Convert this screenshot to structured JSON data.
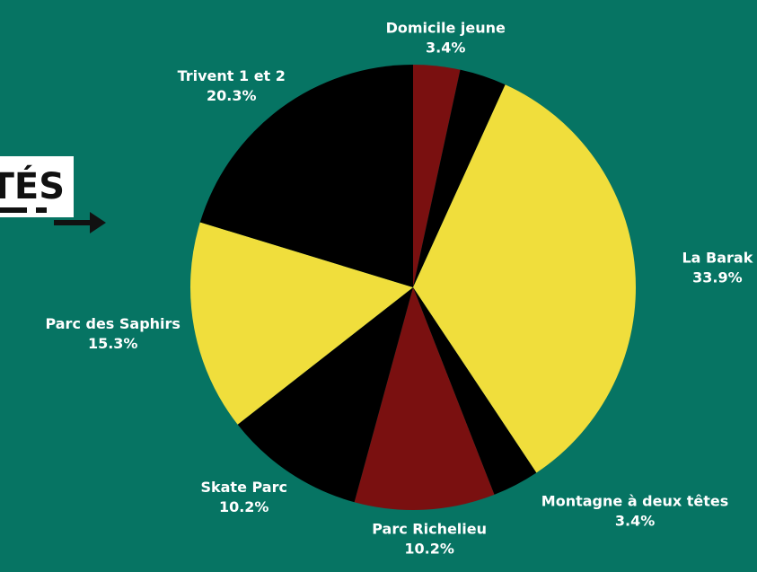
{
  "chart_data": {
    "type": "pie",
    "banner_text": "TÉS",
    "categories": [
      "Domicile jeune",
      null,
      "La Barak",
      "Montagne à deux têtes",
      "Parc Richelieu",
      "Skate Parc",
      "Parc des Saphirs",
      "Trivent 1 et 2"
    ],
    "values": [
      3.4,
      3.4,
      33.9,
      3.4,
      10.2,
      10.2,
      15.3,
      20.3
    ],
    "value_labels": [
      "3.4%",
      null,
      "33.9%",
      "3.4%",
      "10.2%",
      "10.2%",
      "15.3%",
      "20.3%"
    ],
    "colors": [
      "#7a1010",
      "#000000",
      "#f0de3c",
      "#000000",
      "#7a1010",
      "#000000",
      "#f0de3c",
      "#000000"
    ]
  }
}
